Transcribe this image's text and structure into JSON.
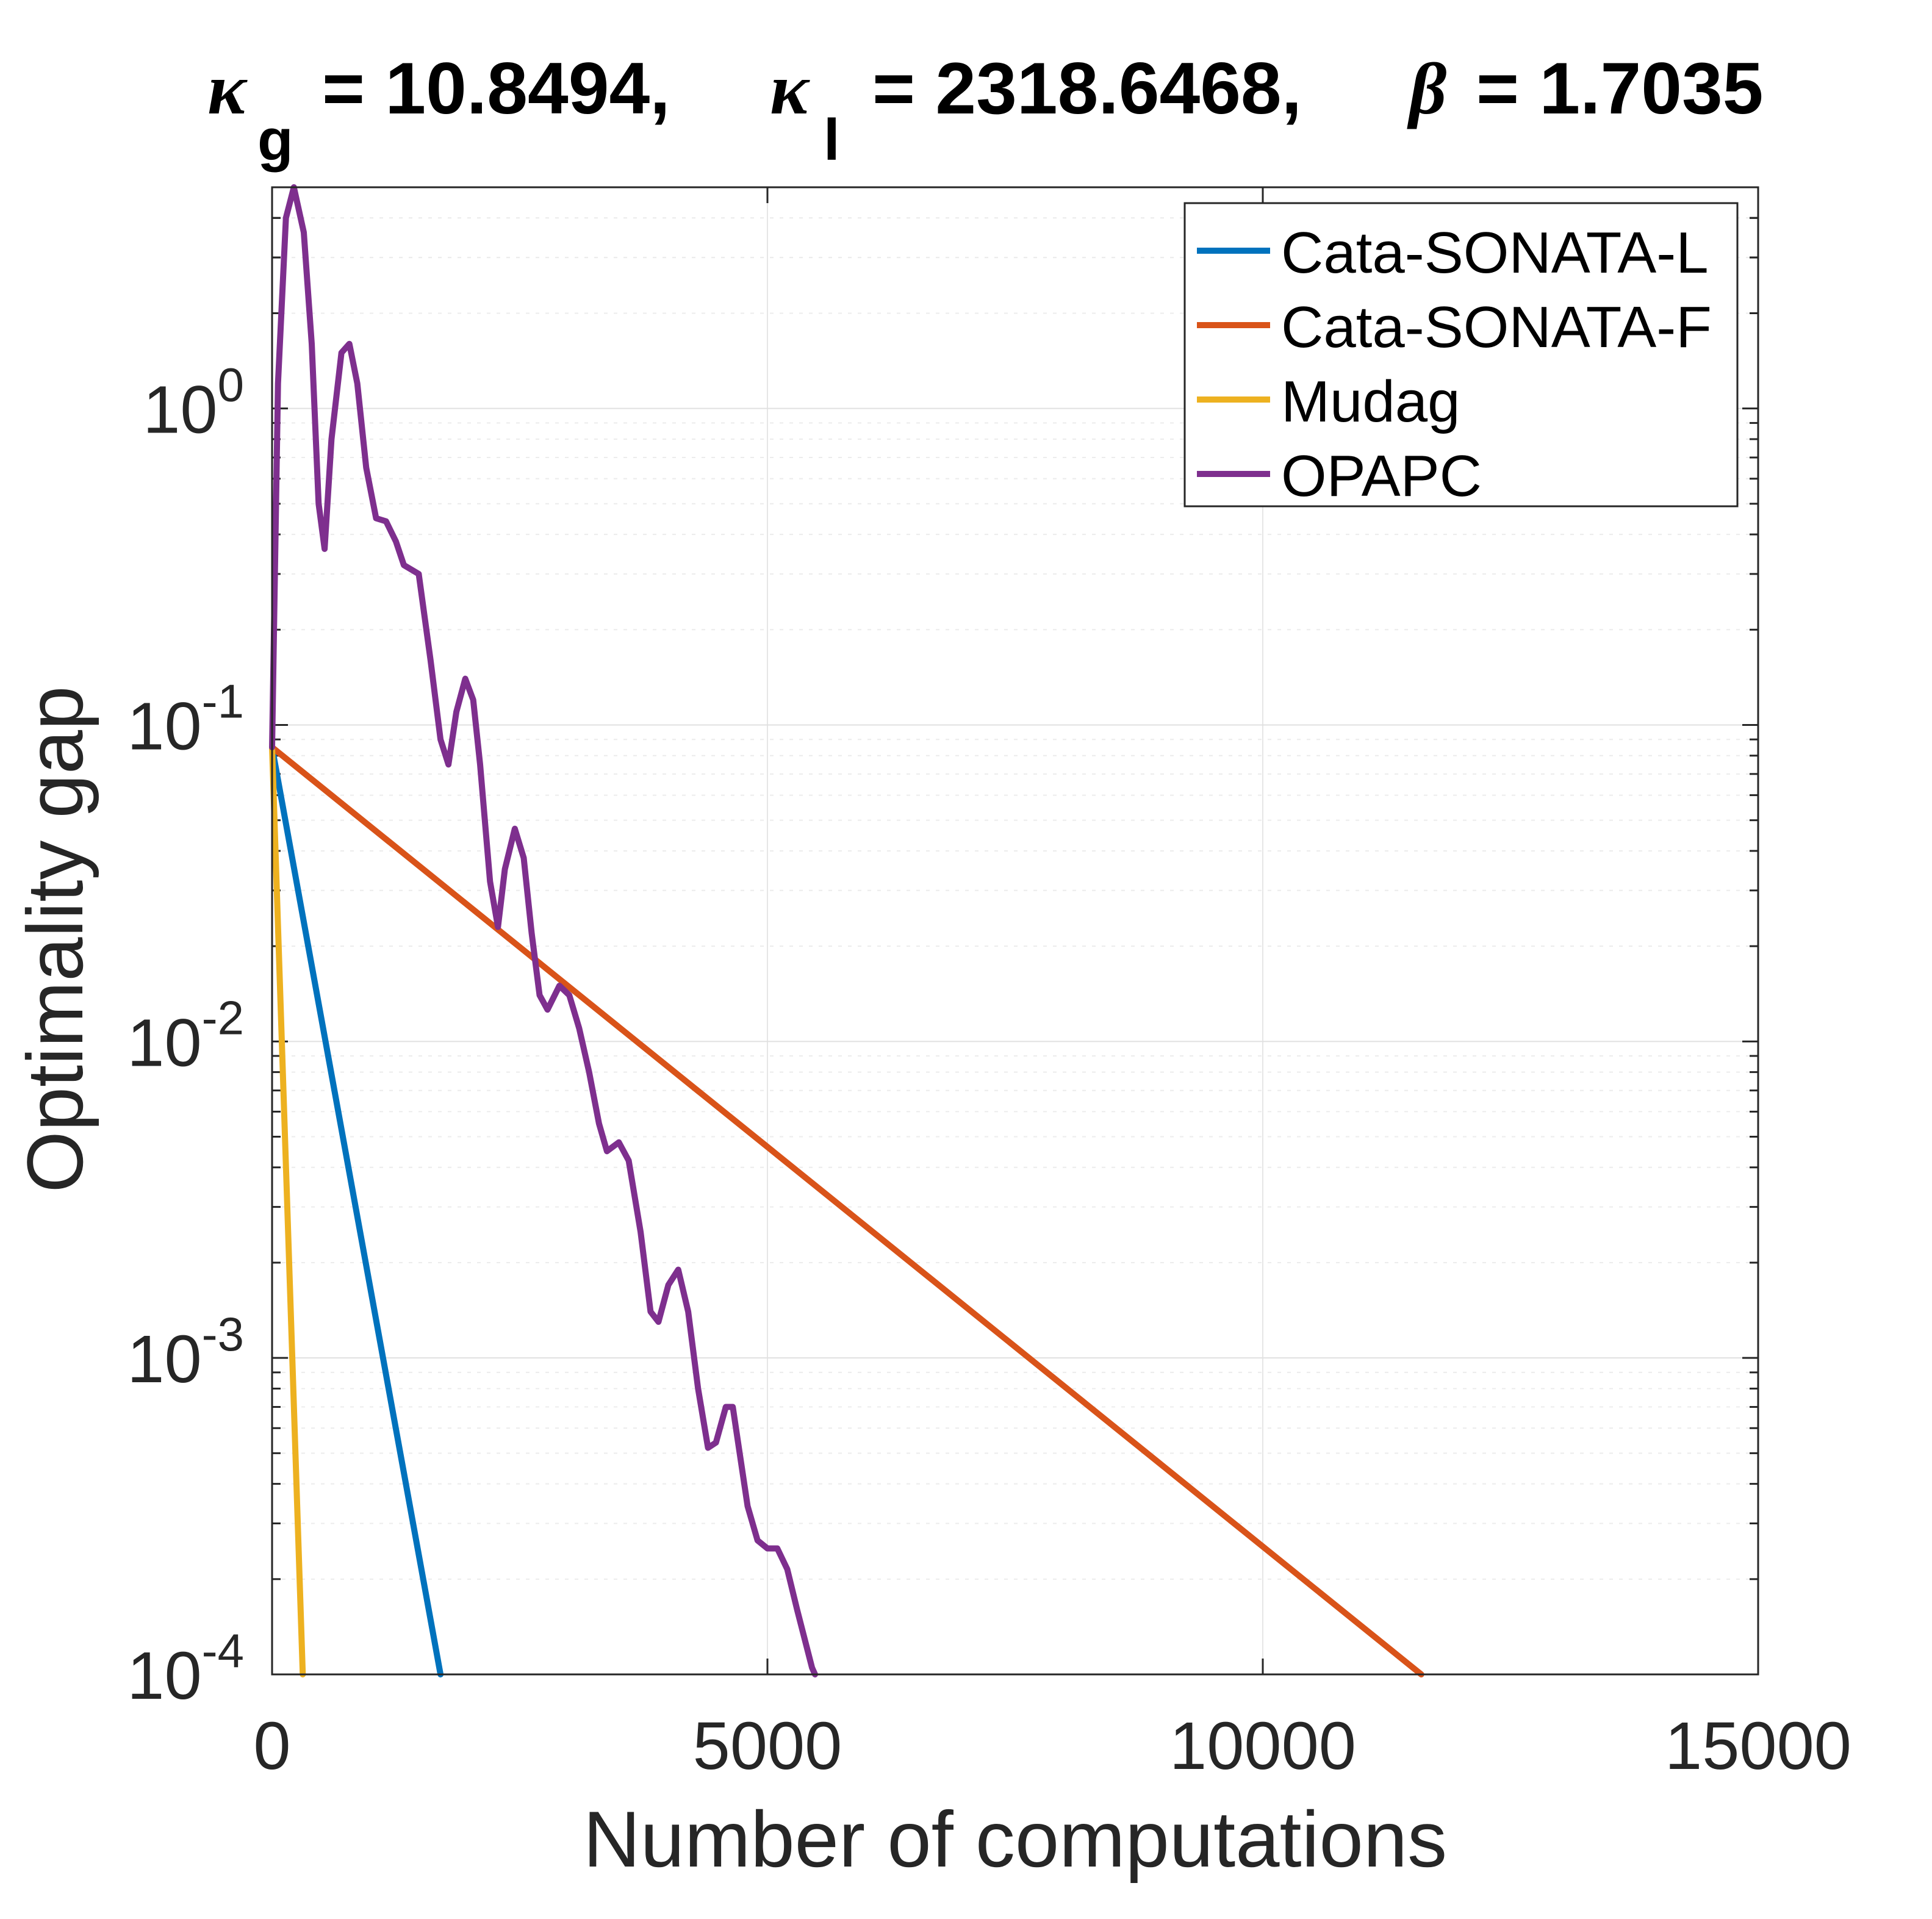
{
  "chart_data": {
    "type": "line",
    "title": {
      "kappa_g_label": "g",
      "kappa_g_value": "= 10.8494,",
      "kappa_l_label": "l",
      "kappa_l_value": "= 2318.6468,",
      "beta_value": "= 1.7035"
    },
    "xlabel": "Number of computations",
    "ylabel": "Optimality gap",
    "xscale": "linear",
    "yscale": "log",
    "xlim": [
      0,
      15000
    ],
    "ylim": [
      0.0001,
      5
    ],
    "grid": true,
    "legend_position": "top-right",
    "x_tick_labels": [
      "0",
      "5000",
      "10000",
      "15000"
    ],
    "x_ticks": [
      0,
      5000,
      10000,
      15000
    ],
    "y_ticks": [
      {
        "value": 1,
        "base": "10",
        "exp": "0"
      },
      {
        "value": 0.1,
        "base": "10",
        "exp": "-1"
      },
      {
        "value": 0.01,
        "base": "10",
        "exp": "-2"
      },
      {
        "value": 0.001,
        "base": "10",
        "exp": "-3"
      },
      {
        "value": 0.0001,
        "base": "10",
        "exp": "-4"
      }
    ],
    "series": [
      {
        "name": "Cata-SONATA-L",
        "color": "#0072BD",
        "points": [
          [
            0,
            0.085
          ],
          [
            1700,
            0.0001
          ]
        ]
      },
      {
        "name": "Cata-SONATA-F",
        "color": "#D95319",
        "points": [
          [
            0,
            0.085
          ],
          [
            11600,
            0.0001
          ]
        ]
      },
      {
        "name": "Mudag",
        "color": "#EDB120",
        "points": [
          [
            0,
            0.085
          ],
          [
            310,
            0.0001
          ]
        ]
      },
      {
        "name": "OPAPC",
        "color": "#7E2F8E",
        "points": [
          [
            0,
            0.085
          ],
          [
            60,
            1.2
          ],
          [
            140,
            4.0
          ],
          [
            220,
            5.0
          ],
          [
            320,
            3.6
          ],
          [
            400,
            1.6
          ],
          [
            470,
            0.5
          ],
          [
            530,
            0.36
          ],
          [
            600,
            0.8
          ],
          [
            700,
            1.5
          ],
          [
            780,
            1.6
          ],
          [
            860,
            1.2
          ],
          [
            950,
            0.65
          ],
          [
            1050,
            0.45
          ],
          [
            1150,
            0.44
          ],
          [
            1250,
            0.38
          ],
          [
            1330,
            0.32
          ],
          [
            1480,
            0.3
          ],
          [
            1600,
            0.16
          ],
          [
            1700,
            0.09
          ],
          [
            1780,
            0.075
          ],
          [
            1860,
            0.11
          ],
          [
            1950,
            0.14
          ],
          [
            2030,
            0.12
          ],
          [
            2100,
            0.075
          ],
          [
            2200,
            0.032
          ],
          [
            2280,
            0.023
          ],
          [
            2350,
            0.035
          ],
          [
            2450,
            0.047
          ],
          [
            2540,
            0.038
          ],
          [
            2620,
            0.022
          ],
          [
            2700,
            0.014
          ],
          [
            2780,
            0.0126
          ],
          [
            2900,
            0.015
          ],
          [
            3000,
            0.014
          ],
          [
            3100,
            0.011
          ],
          [
            3200,
            0.008
          ],
          [
            3300,
            0.0055
          ],
          [
            3380,
            0.0045
          ],
          [
            3500,
            0.0048
          ],
          [
            3600,
            0.0042
          ],
          [
            3720,
            0.0025
          ],
          [
            3820,
            0.0014
          ],
          [
            3900,
            0.0013
          ],
          [
            4000,
            0.0017
          ],
          [
            4100,
            0.0019
          ],
          [
            4200,
            0.0014
          ],
          [
            4300,
            0.0008
          ],
          [
            4400,
            0.00052
          ],
          [
            4480,
            0.00054
          ],
          [
            4580,
            0.0007
          ],
          [
            4650,
            0.0007
          ],
          [
            4720,
            0.0005
          ],
          [
            4800,
            0.00034
          ],
          [
            4900,
            0.000265
          ],
          [
            5000,
            0.00025
          ],
          [
            5100,
            0.00025
          ],
          [
            5200,
            0.000215
          ],
          [
            5300,
            0.00016
          ],
          [
            5450,
            0.000105
          ],
          [
            5480,
            0.0001
          ]
        ]
      }
    ]
  }
}
